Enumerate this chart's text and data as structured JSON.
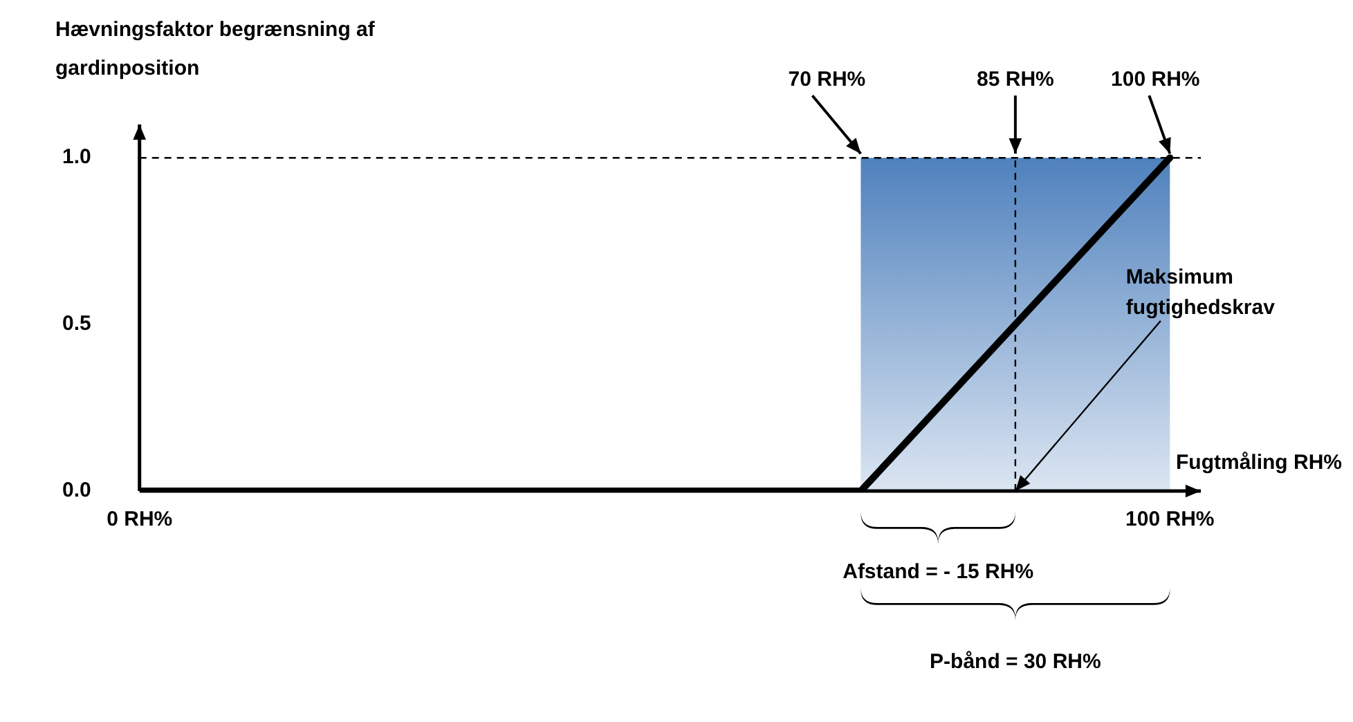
{
  "chart_data": {
    "type": "line",
    "xlabel": "Fugtmåling RH%",
    "ylabel": "Hævningsfaktor begrænsning af gardinposition",
    "x": [
      0,
      70,
      100
    ],
    "series": [
      {
        "color": "#000000",
        "values": [
          0,
          0,
          1
        ]
      }
    ],
    "xlim": [
      0,
      103
    ],
    "xticks": [
      {
        "value": 0,
        "label": "0 RH%"
      },
      {
        "value": 100,
        "label": "100 RH%"
      }
    ],
    "ylim": [
      0,
      1.1
    ],
    "yticks": [
      {
        "value": 0,
        "label": "0.0"
      },
      {
        "value": 0.5,
        "label": "0.5"
      },
      {
        "value": 1,
        "label": "1.0"
      }
    ],
    "bands": [
      {
        "axis": "x",
        "from": 70,
        "to": 100,
        "color": "#4f81bd"
      }
    ],
    "ref_lines": [
      {
        "axis": "y",
        "value": 1,
        "line_style": "dashed",
        "color": "#000000"
      },
      {
        "axis": "x",
        "value": 85,
        "line_style": "dashed",
        "color": "#000000"
      }
    ],
    "annotations": [
      {
        "text": "70 RH%",
        "x": 70,
        "y": 1
      },
      {
        "text": "85 RH%",
        "x": 85,
        "y": 1
      },
      {
        "text": "100 RH%",
        "x": 100,
        "y": 1
      },
      {
        "text": "Maksimum fugtighedskrav",
        "x": 85,
        "y": 0
      },
      "Afstand = - 15 RH%",
      "P-bånd = 30 RH%"
    ],
    "grid": false,
    "legend": false,
    "marker": "none",
    "line_style": "solid"
  }
}
